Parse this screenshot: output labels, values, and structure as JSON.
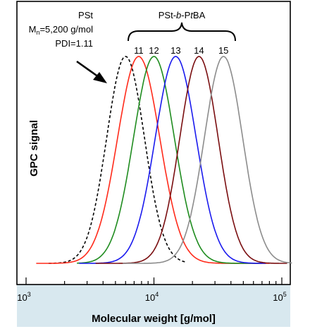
{
  "chart_data": {
    "type": "line",
    "xlabel": "Molecular weight [g/mol]",
    "ylabel": "GPC signal",
    "x_scale": "log",
    "xlim": [
      1000,
      120000
    ],
    "x_ticks": [
      {
        "value": 1000,
        "base": "10",
        "exp": "3"
      },
      {
        "value": 10000,
        "base": "10",
        "exp": "4"
      },
      {
        "value": 100000,
        "base": "10",
        "exp": "5"
      }
    ],
    "grid": false,
    "background_color": "#d8e8ef",
    "annotations": {
      "pst_name": "PSt",
      "pst_mn_prefix": "M",
      "pst_mn_sub": "n",
      "pst_mn_value": "=5,200 g/mol",
      "pst_pdi": "PDI=1.11",
      "copolymer_prefix": "PSt-",
      "copolymer_b": "b",
      "copolymer_mid": "-P",
      "copolymer_t": "t",
      "copolymer_suffix": "BA"
    },
    "series": [
      {
        "name": "PSt",
        "color": "#000000",
        "dash": true,
        "peak": 6000,
        "sigma": 0.148,
        "x_range": [
          1500,
          18000
        ]
      },
      {
        "name": "11",
        "color": "#ff2a1a",
        "dash": false,
        "peak": 7600,
        "sigma": 0.165,
        "x_range": [
          1200,
          80000
        ]
      },
      {
        "name": "12",
        "color": "#1f8c1f",
        "dash": false,
        "peak": 10000,
        "sigma": 0.16,
        "x_range": [
          2500,
          70000
        ]
      },
      {
        "name": "13",
        "color": "#1a1aee",
        "dash": false,
        "peak": 14800,
        "sigma": 0.16,
        "x_range": [
          2600,
          75000
        ]
      },
      {
        "name": "14",
        "color": "#7a0e10",
        "dash": false,
        "peak": 22500,
        "sigma": 0.15,
        "x_range": [
          3500,
          110000
        ]
      },
      {
        "name": "15",
        "color": "#8c8c8c",
        "dash": false,
        "peak": 35000,
        "sigma": 0.15,
        "x_range": [
          5700,
          120000
        ]
      }
    ]
  }
}
